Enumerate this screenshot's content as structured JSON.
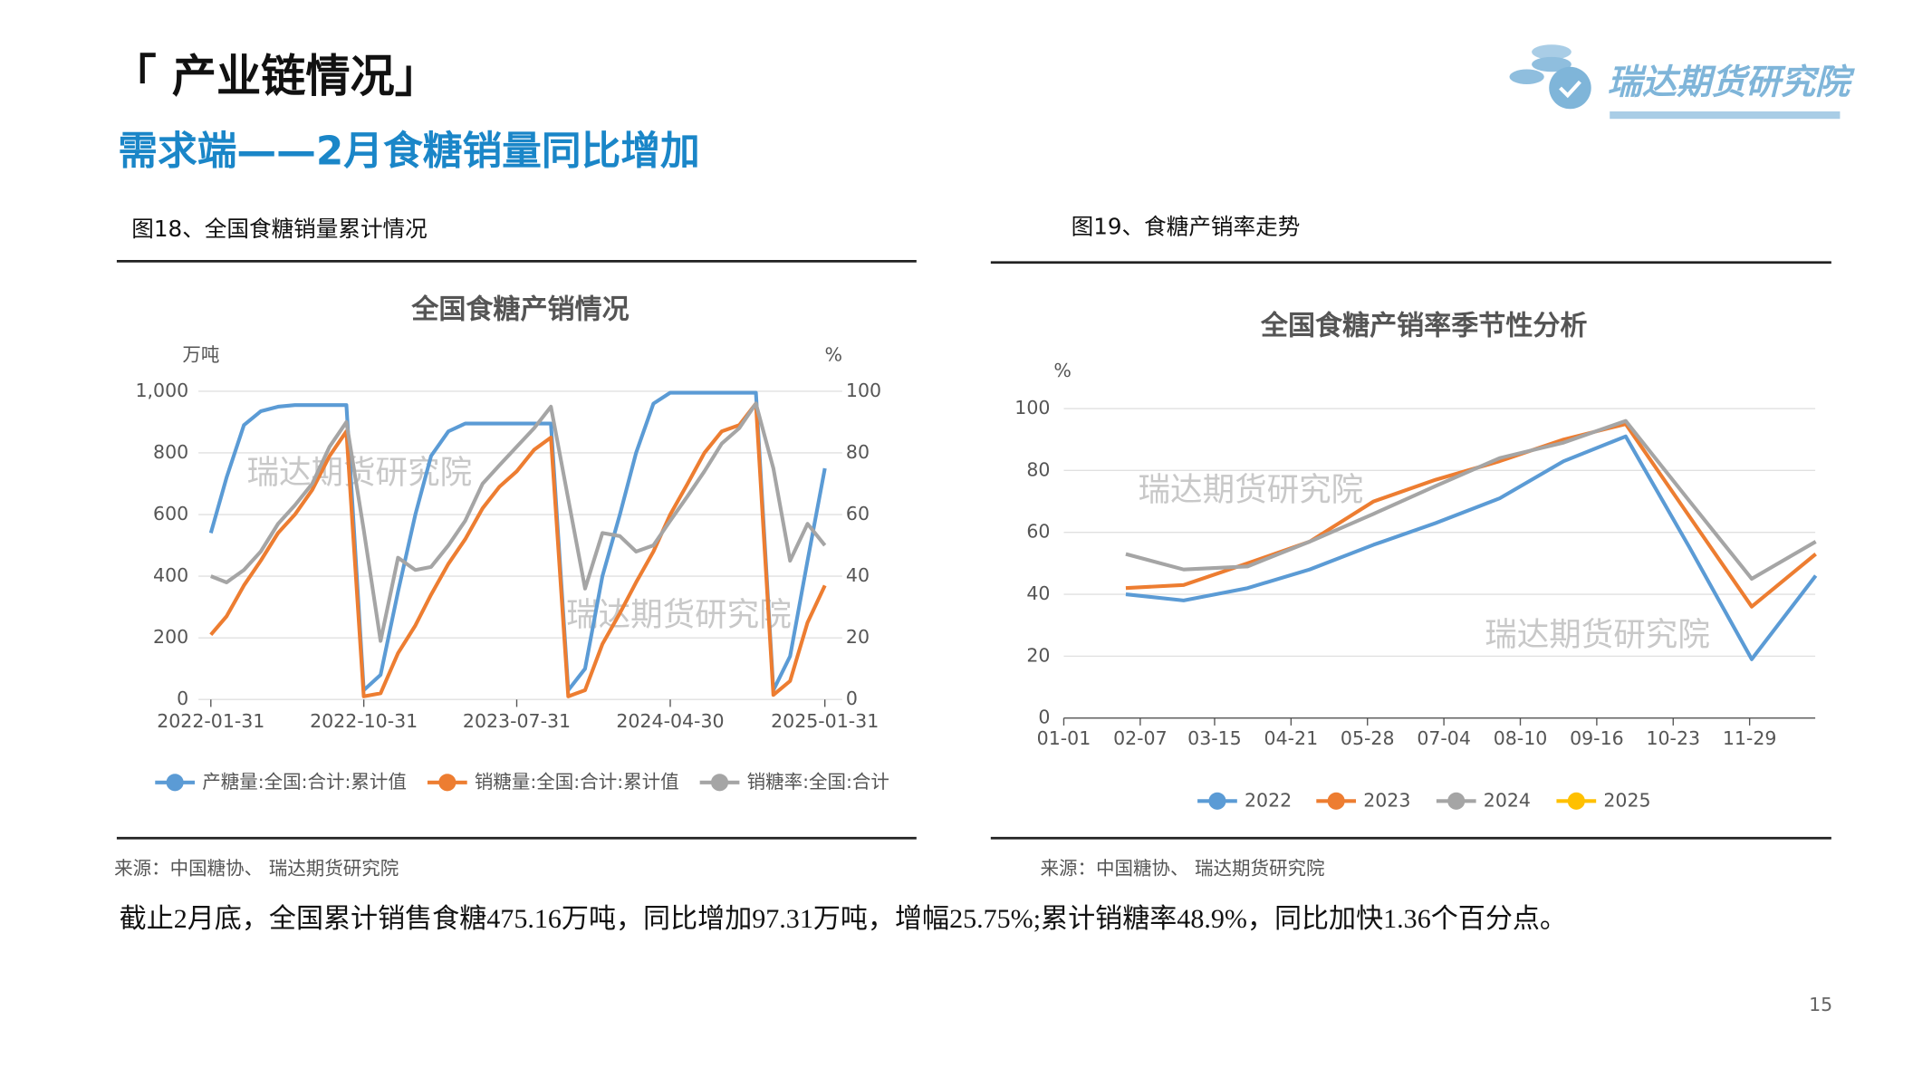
{
  "header": {
    "title": "「 产业链情况」",
    "subtitle": "需求端——2月食糖销量同比增加",
    "logo": "瑞达期货研究院"
  },
  "figures": [
    {
      "caption": "图18、全国食糖销量累计情况",
      "source": "来源：中国糖协、 瑞达期货研究院"
    },
    {
      "caption": "图19、食糖产销率走势",
      "source": "来源：中国糖协、 瑞达期货研究院"
    }
  ],
  "chart_data": [
    {
      "type": "line",
      "title": "全国食糖产销情况",
      "y_label": "万吨",
      "y2_label": "%",
      "x": [
        "2022-01-31",
        "2022-02-28",
        "2022-03-31",
        "2022-04-30",
        "2022-05-31",
        "2022-06-30",
        "2022-07-31",
        "2022-08-31",
        "2022-09-30",
        "2022-10-31",
        "2022-11-30",
        "2022-12-31",
        "2023-01-31",
        "2023-02-28",
        "2023-03-31",
        "2023-04-30",
        "2023-05-31",
        "2023-06-30",
        "2023-07-31",
        "2023-08-31",
        "2023-09-30",
        "2023-10-31",
        "2023-11-30",
        "2023-12-31",
        "2024-01-31",
        "2024-02-29",
        "2024-03-31",
        "2024-04-30",
        "2024-05-31",
        "2024-06-30",
        "2024-07-31",
        "2024-08-31",
        "2024-09-30",
        "2024-10-31",
        "2024-11-30",
        "2024-12-31",
        "2025-01-31"
      ],
      "xticks": [
        "2022-01-31",
        "2022-10-31",
        "2023-07-31",
        "2024-04-30",
        "2025-01-31"
      ],
      "ylim": [
        0,
        1000
      ],
      "yticks": [
        0,
        200,
        400,
        600,
        800,
        {
          "value": 1000,
          "label": "1,000"
        }
      ],
      "y2lim": [
        0,
        100
      ],
      "y2ticks": [
        0,
        20,
        40,
        60,
        80,
        100
      ],
      "grid": true,
      "series": [
        {
          "name": "产糖量:全国:合计:累计值",
          "color": "#5b9bd5",
          "values": [
            540,
            720,
            890,
            935,
            950,
            955,
            955,
            955,
            955,
            30,
            80,
            350,
            600,
            790,
            870,
            895,
            895,
            895,
            895,
            895,
            895,
            30,
            100,
            400,
            600,
            800,
            960,
            995,
            995,
            995,
            995,
            995,
            995,
            30,
            140,
            450,
            750
          ]
        },
        {
          "name": "销糖量:全国:合计:累计值",
          "color": "#ed7d31",
          "values": [
            210,
            270,
            370,
            450,
            540,
            600,
            680,
            790,
            870,
            10,
            20,
            150,
            240,
            340,
            440,
            520,
            620,
            690,
            740,
            810,
            850,
            10,
            30,
            180,
            280,
            380,
            480,
            600,
            700,
            800,
            870,
            890,
            960,
            15,
            60,
            250,
            370
          ]
        },
        {
          "name": "销糖率:全国:合计",
          "color": "#a5a5a5",
          "axis": "y2",
          "values": [
            40,
            38,
            42,
            48,
            57,
            63,
            70,
            82,
            90,
            55,
            19,
            46,
            42,
            43,
            50,
            58,
            70,
            76,
            82,
            88,
            95,
            65,
            36,
            54,
            53,
            48,
            50,
            58,
            66,
            74,
            83,
            88,
            96,
            75,
            45,
            57,
            50
          ]
        }
      ],
      "watermarks": [
        "瑞达期货研究院",
        "瑞达期货研究院"
      ]
    },
    {
      "type": "line",
      "title": "全国食糖产销率季节性分析",
      "y_label": "%",
      "x": [
        "01-31",
        "02-28",
        "03-31",
        "04-30",
        "05-31",
        "06-30",
        "07-31",
        "08-31",
        "09-30",
        "10-31",
        "11-30",
        "12-31"
      ],
      "xticks": [
        "01-01",
        "02-07",
        "03-15",
        "04-21",
        "05-28",
        "07-04",
        "08-10",
        "09-16",
        "10-23",
        "11-29"
      ],
      "ylim": [
        0,
        100
      ],
      "yticks": [
        0,
        20,
        40,
        60,
        80,
        100
      ],
      "grid": true,
      "series": [
        {
          "name": "2022",
          "color": "#5b9bd5",
          "values": [
            40,
            38,
            42,
            48,
            56,
            63,
            71,
            83,
            91,
            55,
            19,
            46
          ]
        },
        {
          "name": "2023",
          "color": "#ed7d31",
          "values": [
            42,
            43,
            50,
            57,
            70,
            77,
            83,
            90,
            95,
            65,
            36,
            53
          ]
        },
        {
          "name": "2024",
          "color": "#a5a5a5",
          "values": [
            53,
            48,
            49,
            57,
            66,
            75,
            84,
            89,
            96,
            70,
            45,
            57
          ]
        },
        {
          "name": "2025",
          "color": "#ffc000",
          "values": [
            null,
            null,
            null,
            null,
            null,
            null,
            null,
            null,
            null,
            null,
            null,
            null
          ]
        }
      ],
      "watermarks": [
        "瑞达期货研究院",
        "瑞达期货研究院"
      ]
    }
  ],
  "body": "截止2月底，全国累计销售食糖475.16万吨，同比增加97.31万吨，增幅25.75%;累计销糖率48.9%，同比加快1.36个百分点。",
  "page_number": "15"
}
